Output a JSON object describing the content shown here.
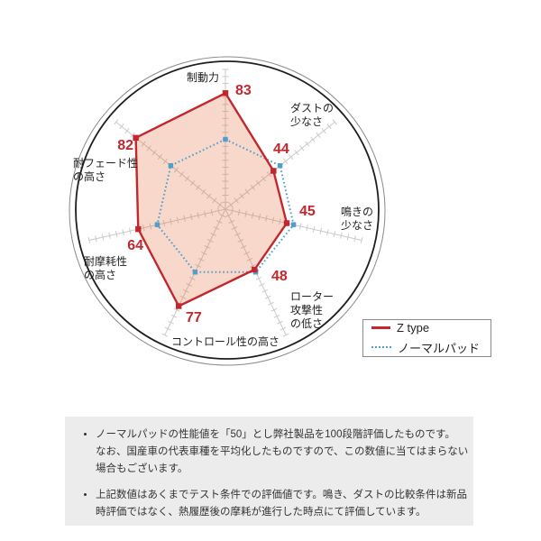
{
  "chart_data": {
    "type": "radar",
    "title": "",
    "categories": [
      "制動力",
      "ダストの\n少なさ",
      "鳴きの\n少なさ",
      "ローター\n攻撃性\nの低さ",
      "コントロール性の高さ",
      "耐摩耗性\nの高さ",
      "耐フェード性\nの高さ"
    ],
    "axis_range": [
      0,
      100
    ],
    "tick_step": 5,
    "grid_on": true,
    "legend_position": "bottom-right",
    "series": [
      {
        "name": "Z type",
        "values": [
          83,
          44,
          45,
          48,
          77,
          64,
          82
        ],
        "color": "#c1272d",
        "fill": "rgba(230,110,64,0.27)",
        "line_style": "solid",
        "marker": "square"
      },
      {
        "name": "ノーマルパッド",
        "values": [
          50,
          50,
          50,
          50,
          50,
          50,
          50
        ],
        "color": "#4f9ecb",
        "fill": "none",
        "line_style": "dotted",
        "marker": "square"
      }
    ]
  },
  "notes": {
    "bullets": [
      "ノーマルパッドの性能値を「50」とし弊社製品を100段階評価したものです。\nなお、国産車の代表車種を平均化したものですので、この数値に当てはまらない\n場合もございます。",
      "上記数値はあくまでテスト条件での評価値です。鳴き、ダストの比較条件は新品\n時評価ではなく、熱履歴後の摩耗が進行した時点にて評価しています。"
    ]
  }
}
